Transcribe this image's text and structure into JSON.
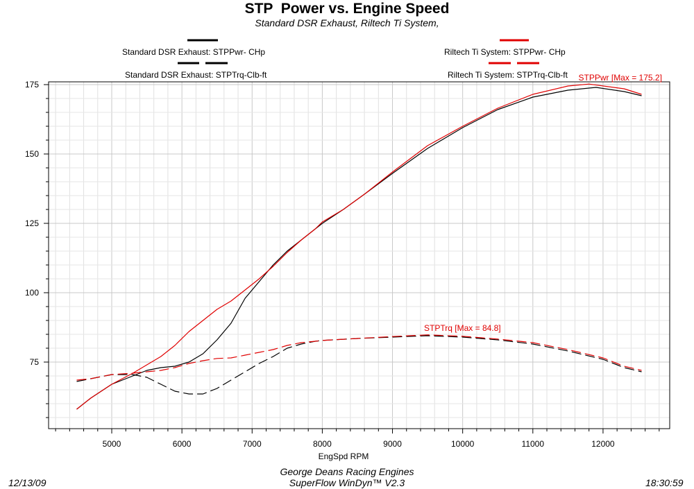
{
  "header": {
    "title": "STP  Power vs. Engine Speed",
    "subtitle": "Standard DSR Exhaust, Riltech Ti System,"
  },
  "legend": [
    {
      "label": "Standard DSR Exhaust: STPPwr- CHp",
      "color": "#000000",
      "style": "solid"
    },
    {
      "label": "Standard DSR Exhaust: STPTrq-Clb-ft",
      "color": "#000000",
      "style": "dashed"
    },
    {
      "label": "Riltech Ti System: STPPwr- CHp",
      "color": "#e00000",
      "style": "solid"
    },
    {
      "label": "Riltech Ti System: STPTrq-Clb-ft",
      "color": "#e00000",
      "style": "dashed"
    }
  ],
  "footer": {
    "date": "12/13/09",
    "company": "George Deans Racing Engines",
    "software": "SuperFlow WinDyn™ V2.3",
    "time": "18:30:59"
  },
  "chart_data": {
    "type": "line",
    "xlabel": "EngSpd  RPM",
    "ylabel": "",
    "xlim": [
      4100,
      12950
    ],
    "ylim": [
      51,
      176
    ],
    "xticks": [
      5000,
      6000,
      7000,
      8000,
      9000,
      10000,
      11000,
      12000
    ],
    "yticks": [
      75,
      100,
      125,
      150,
      175
    ],
    "grid": true,
    "series": [
      {
        "name": "Standard DSR Exhaust: STPPwr- CHp",
        "color": "#000000",
        "dash": false,
        "x": [
          4500,
          4700,
          5000,
          5300,
          5500,
          5700,
          5900,
          6100,
          6300,
          6500,
          6700,
          6900,
          7100,
          7300,
          7500,
          7700,
          7900,
          8000,
          8300,
          8600,
          9000,
          9500,
          10000,
          10500,
          11000,
          11500,
          11900,
          12300,
          12550
        ],
        "y": [
          58,
          62,
          67,
          70,
          72,
          73,
          73.5,
          75,
          78,
          83,
          89,
          98,
          104,
          110,
          115,
          119,
          123,
          125,
          130,
          135.5,
          143,
          152,
          159.5,
          166,
          170.5,
          173,
          174,
          172.5,
          171
        ]
      },
      {
        "name": "Riltech Ti System: STPPwr- CHp",
        "color": "#e00000",
        "dash": false,
        "x": [
          4500,
          4700,
          5000,
          5300,
          5500,
          5700,
          5900,
          6100,
          6300,
          6500,
          6700,
          6900,
          7100,
          7300,
          7500,
          7700,
          7900,
          8000,
          8300,
          8600,
          9000,
          9500,
          10000,
          10500,
          11000,
          11500,
          11800,
          12300,
          12550
        ],
        "y": [
          58,
          62,
          67,
          71,
          74,
          77,
          81,
          86,
          90,
          94,
          97,
          101,
          105,
          109.5,
          114.5,
          119,
          123,
          125.5,
          130,
          135.5,
          143.5,
          153,
          160,
          166.5,
          171.5,
          174.5,
          175.2,
          173.5,
          171.5
        ]
      },
      {
        "name": "Standard DSR Exhaust: STPTrq-Clb-ft",
        "color": "#000000",
        "dash": true,
        "x": [
          4500,
          4700,
          5000,
          5300,
          5500,
          5700,
          5900,
          6100,
          6300,
          6500,
          6700,
          6900,
          7100,
          7300,
          7500,
          7700,
          7900,
          8000,
          8500,
          9000,
          9500,
          10000,
          10500,
          11000,
          11500,
          12000,
          12300,
          12550
        ],
        "y": [
          68,
          69,
          70.5,
          70.5,
          69.5,
          67,
          64.5,
          63.5,
          63.5,
          65.5,
          68.5,
          71.5,
          74.5,
          77,
          80,
          81.5,
          82.5,
          82.8,
          83.5,
          84,
          84.5,
          84,
          83,
          81.5,
          79,
          76,
          73,
          71.5
        ]
      },
      {
        "name": "Riltech Ti System: STPTrq-Clb-ft",
        "color": "#e00000",
        "dash": true,
        "x": [
          4500,
          4700,
          5000,
          5300,
          5500,
          5700,
          5900,
          6100,
          6300,
          6500,
          6700,
          6900,
          7100,
          7300,
          7500,
          7700,
          7900,
          8000,
          8500,
          9000,
          9500,
          10000,
          10500,
          11000,
          11500,
          12000,
          12300,
          12550
        ],
        "y": [
          68.5,
          69,
          70.5,
          71,
          71.5,
          72,
          73,
          74.5,
          75.5,
          76.3,
          76.5,
          77.5,
          78.5,
          79.5,
          81,
          82,
          82.5,
          82.8,
          83.5,
          84.2,
          84.8,
          84.3,
          83.3,
          82,
          79.5,
          76.5,
          73.5,
          72
        ]
      }
    ],
    "annotations": [
      {
        "text": "STPPwr [Max = 175.2]",
        "x": 11650,
        "y": 176.5,
        "color": "#e00000"
      },
      {
        "text": "STPTrq [Max = 84.8]",
        "x": 9450,
        "y": 86.3,
        "color": "#e00000"
      }
    ]
  }
}
